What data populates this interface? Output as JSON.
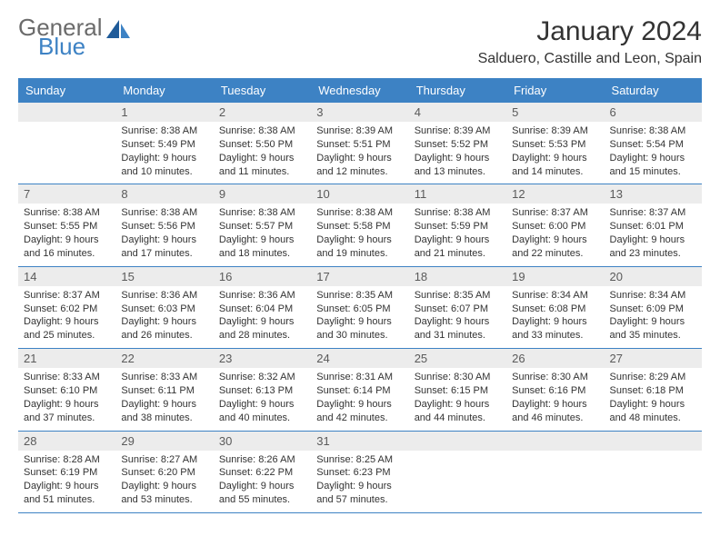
{
  "logo": {
    "text1": "General",
    "text2": "Blue",
    "color_grey": "#6b6b6b",
    "color_blue": "#3d82c4"
  },
  "title": "January 2024",
  "location": "Salduero, Castille and Leon, Spain",
  "colors": {
    "header_bg": "#3d82c4",
    "header_text": "#ffffff",
    "daynum_bg": "#ececec",
    "daynum_text": "#5a5a5a",
    "body_text": "#333333",
    "row_border": "#3d82c4"
  },
  "dayNames": [
    "Sunday",
    "Monday",
    "Tuesday",
    "Wednesday",
    "Thursday",
    "Friday",
    "Saturday"
  ],
  "weeks": [
    [
      {
        "num": "",
        "sunrise": "",
        "sunset": "",
        "daylight": ""
      },
      {
        "num": "1",
        "sunrise": "Sunrise: 8:38 AM",
        "sunset": "Sunset: 5:49 PM",
        "daylight": "Daylight: 9 hours and 10 minutes."
      },
      {
        "num": "2",
        "sunrise": "Sunrise: 8:38 AM",
        "sunset": "Sunset: 5:50 PM",
        "daylight": "Daylight: 9 hours and 11 minutes."
      },
      {
        "num": "3",
        "sunrise": "Sunrise: 8:39 AM",
        "sunset": "Sunset: 5:51 PM",
        "daylight": "Daylight: 9 hours and 12 minutes."
      },
      {
        "num": "4",
        "sunrise": "Sunrise: 8:39 AM",
        "sunset": "Sunset: 5:52 PM",
        "daylight": "Daylight: 9 hours and 13 minutes."
      },
      {
        "num": "5",
        "sunrise": "Sunrise: 8:39 AM",
        "sunset": "Sunset: 5:53 PM",
        "daylight": "Daylight: 9 hours and 14 minutes."
      },
      {
        "num": "6",
        "sunrise": "Sunrise: 8:38 AM",
        "sunset": "Sunset: 5:54 PM",
        "daylight": "Daylight: 9 hours and 15 minutes."
      }
    ],
    [
      {
        "num": "7",
        "sunrise": "Sunrise: 8:38 AM",
        "sunset": "Sunset: 5:55 PM",
        "daylight": "Daylight: 9 hours and 16 minutes."
      },
      {
        "num": "8",
        "sunrise": "Sunrise: 8:38 AM",
        "sunset": "Sunset: 5:56 PM",
        "daylight": "Daylight: 9 hours and 17 minutes."
      },
      {
        "num": "9",
        "sunrise": "Sunrise: 8:38 AM",
        "sunset": "Sunset: 5:57 PM",
        "daylight": "Daylight: 9 hours and 18 minutes."
      },
      {
        "num": "10",
        "sunrise": "Sunrise: 8:38 AM",
        "sunset": "Sunset: 5:58 PM",
        "daylight": "Daylight: 9 hours and 19 minutes."
      },
      {
        "num": "11",
        "sunrise": "Sunrise: 8:38 AM",
        "sunset": "Sunset: 5:59 PM",
        "daylight": "Daylight: 9 hours and 21 minutes."
      },
      {
        "num": "12",
        "sunrise": "Sunrise: 8:37 AM",
        "sunset": "Sunset: 6:00 PM",
        "daylight": "Daylight: 9 hours and 22 minutes."
      },
      {
        "num": "13",
        "sunrise": "Sunrise: 8:37 AM",
        "sunset": "Sunset: 6:01 PM",
        "daylight": "Daylight: 9 hours and 23 minutes."
      }
    ],
    [
      {
        "num": "14",
        "sunrise": "Sunrise: 8:37 AM",
        "sunset": "Sunset: 6:02 PM",
        "daylight": "Daylight: 9 hours and 25 minutes."
      },
      {
        "num": "15",
        "sunrise": "Sunrise: 8:36 AM",
        "sunset": "Sunset: 6:03 PM",
        "daylight": "Daylight: 9 hours and 26 minutes."
      },
      {
        "num": "16",
        "sunrise": "Sunrise: 8:36 AM",
        "sunset": "Sunset: 6:04 PM",
        "daylight": "Daylight: 9 hours and 28 minutes."
      },
      {
        "num": "17",
        "sunrise": "Sunrise: 8:35 AM",
        "sunset": "Sunset: 6:05 PM",
        "daylight": "Daylight: 9 hours and 30 minutes."
      },
      {
        "num": "18",
        "sunrise": "Sunrise: 8:35 AM",
        "sunset": "Sunset: 6:07 PM",
        "daylight": "Daylight: 9 hours and 31 minutes."
      },
      {
        "num": "19",
        "sunrise": "Sunrise: 8:34 AM",
        "sunset": "Sunset: 6:08 PM",
        "daylight": "Daylight: 9 hours and 33 minutes."
      },
      {
        "num": "20",
        "sunrise": "Sunrise: 8:34 AM",
        "sunset": "Sunset: 6:09 PM",
        "daylight": "Daylight: 9 hours and 35 minutes."
      }
    ],
    [
      {
        "num": "21",
        "sunrise": "Sunrise: 8:33 AM",
        "sunset": "Sunset: 6:10 PM",
        "daylight": "Daylight: 9 hours and 37 minutes."
      },
      {
        "num": "22",
        "sunrise": "Sunrise: 8:33 AM",
        "sunset": "Sunset: 6:11 PM",
        "daylight": "Daylight: 9 hours and 38 minutes."
      },
      {
        "num": "23",
        "sunrise": "Sunrise: 8:32 AM",
        "sunset": "Sunset: 6:13 PM",
        "daylight": "Daylight: 9 hours and 40 minutes."
      },
      {
        "num": "24",
        "sunrise": "Sunrise: 8:31 AM",
        "sunset": "Sunset: 6:14 PM",
        "daylight": "Daylight: 9 hours and 42 minutes."
      },
      {
        "num": "25",
        "sunrise": "Sunrise: 8:30 AM",
        "sunset": "Sunset: 6:15 PM",
        "daylight": "Daylight: 9 hours and 44 minutes."
      },
      {
        "num": "26",
        "sunrise": "Sunrise: 8:30 AM",
        "sunset": "Sunset: 6:16 PM",
        "daylight": "Daylight: 9 hours and 46 minutes."
      },
      {
        "num": "27",
        "sunrise": "Sunrise: 8:29 AM",
        "sunset": "Sunset: 6:18 PM",
        "daylight": "Daylight: 9 hours and 48 minutes."
      }
    ],
    [
      {
        "num": "28",
        "sunrise": "Sunrise: 8:28 AM",
        "sunset": "Sunset: 6:19 PM",
        "daylight": "Daylight: 9 hours and 51 minutes."
      },
      {
        "num": "29",
        "sunrise": "Sunrise: 8:27 AM",
        "sunset": "Sunset: 6:20 PM",
        "daylight": "Daylight: 9 hours and 53 minutes."
      },
      {
        "num": "30",
        "sunrise": "Sunrise: 8:26 AM",
        "sunset": "Sunset: 6:22 PM",
        "daylight": "Daylight: 9 hours and 55 minutes."
      },
      {
        "num": "31",
        "sunrise": "Sunrise: 8:25 AM",
        "sunset": "Sunset: 6:23 PM",
        "daylight": "Daylight: 9 hours and 57 minutes."
      },
      {
        "num": "",
        "sunrise": "",
        "sunset": "",
        "daylight": ""
      },
      {
        "num": "",
        "sunrise": "",
        "sunset": "",
        "daylight": ""
      },
      {
        "num": "",
        "sunrise": "",
        "sunset": "",
        "daylight": ""
      }
    ]
  ]
}
